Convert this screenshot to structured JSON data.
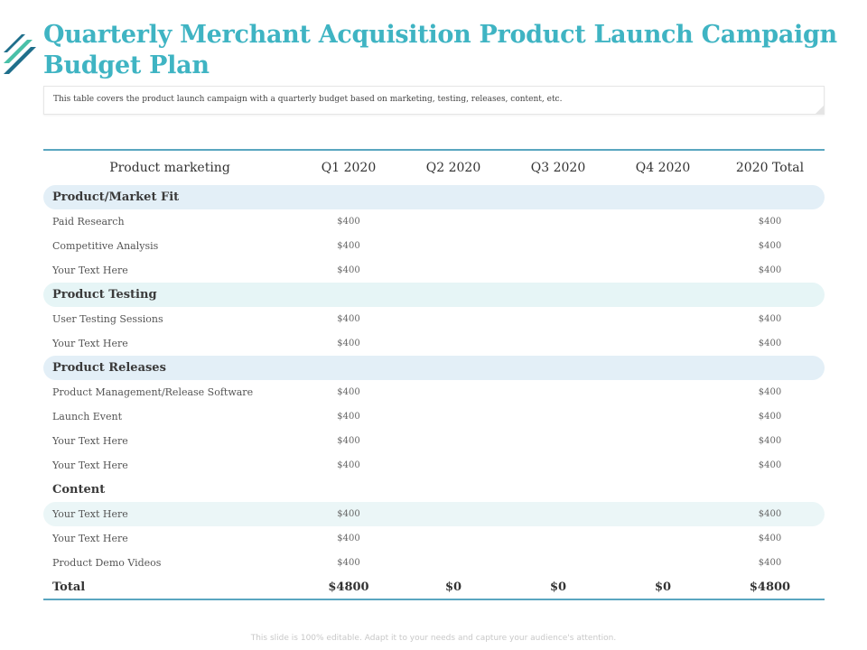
{
  "slide": {
    "title": "Quarterly Merchant Acquisition Product Launch Campaign Budget Plan",
    "description": "This table covers the product launch campaign with a quarterly budget based on marketing, testing, releases, content, etc.",
    "footer": "This slide is 100% editable. Adapt it to your needs and capture your audience's attention."
  },
  "colors": {
    "title": "#3fb4c3",
    "rule": "#5aa6c0",
    "logo_dark": "#1f6f8b",
    "logo_light": "#49c0a8"
  },
  "table": {
    "headers": [
      "Product marketing",
      "Q1 2020",
      "Q2 2020",
      "Q3 2020",
      "Q4 2020",
      "2020 Total"
    ],
    "sections": {
      "fit": "Product/Market Fit",
      "testing": "Product Testing",
      "releases": "Product Releases",
      "content": "Content"
    },
    "rows": [
      {
        "label": "Paid Research",
        "q1": "$400",
        "q2": "",
        "q3": "",
        "q4": "",
        "total": "$400"
      },
      {
        "label": "Competitive Analysis",
        "q1": "$400",
        "q2": "",
        "q3": "",
        "q4": "",
        "total": "$400"
      },
      {
        "label": "Your Text Here",
        "q1": "$400",
        "q2": "",
        "q3": "",
        "q4": "",
        "total": "$400"
      },
      {
        "label": "User Testing Sessions",
        "q1": "$400",
        "q2": "",
        "q3": "",
        "q4": "",
        "total": "$400"
      },
      {
        "label": "Your Text Here",
        "q1": "$400",
        "q2": "",
        "q3": "",
        "q4": "",
        "total": "$400"
      },
      {
        "label": "Product Management/Release Software",
        "q1": "$400",
        "q2": "",
        "q3": "",
        "q4": "",
        "total": "$400"
      },
      {
        "label": "Launch Event",
        "q1": "$400",
        "q2": "",
        "q3": "",
        "q4": "",
        "total": "$400"
      },
      {
        "label": "Your Text Here",
        "q1": "$400",
        "q2": "",
        "q3": "",
        "q4": "",
        "total": "$400"
      },
      {
        "label": "Your Text Here",
        "q1": "$400",
        "q2": "",
        "q3": "",
        "q4": "",
        "total": "$400"
      },
      {
        "label": "Your Text Here",
        "q1": "$400",
        "q2": "",
        "q3": "",
        "q4": "",
        "total": "$400"
      },
      {
        "label": "Your Text Here",
        "q1": "$400",
        "q2": "",
        "q3": "",
        "q4": "",
        "total": "$400"
      },
      {
        "label": "Product Demo Videos",
        "q1": "$400",
        "q2": "",
        "q3": "",
        "q4": "",
        "total": "$400"
      }
    ],
    "total": {
      "label": "Total",
      "q1": "$4800",
      "q2": "$0",
      "q3": "$0",
      "q4": "$0",
      "total": "$4800"
    }
  }
}
